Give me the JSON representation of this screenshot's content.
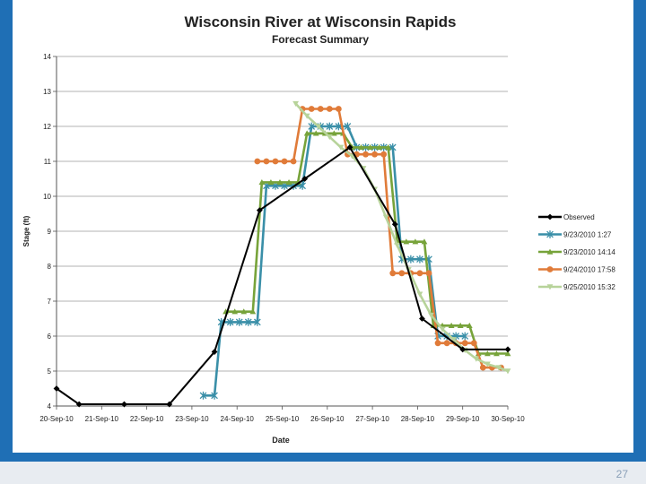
{
  "page_number": "27",
  "chart_data": {
    "type": "line",
    "title": "Wisconsin River at Wisconsin Rapids",
    "subtitle": "Forecast Summary",
    "xlabel": "Date",
    "ylabel": "Stage (ft)",
    "ylim": [
      4,
      14
    ],
    "yticks": [
      "4",
      "5",
      "6",
      "7",
      "8",
      "9",
      "10",
      "11",
      "12",
      "13",
      "14"
    ],
    "categories": [
      "20-Sep-10",
      "21-Sep-10",
      "22-Sep-10",
      "23-Sep-10",
      "24-Sep-10",
      "25-Sep-10",
      "26-Sep-10",
      "27-Sep-10",
      "28-Sep-10",
      "29-Sep-10",
      "30-Sep-10"
    ],
    "grid": true,
    "legend_position": "right",
    "series": [
      {
        "name": "Observed",
        "color": "#000000",
        "marker": "diamond",
        "points": [
          [
            0,
            4.5
          ],
          [
            0.5,
            4.05
          ],
          [
            1.5,
            4.05
          ],
          [
            2.5,
            4.05
          ],
          [
            3.5,
            5.55
          ],
          [
            4.5,
            9.6
          ],
          [
            5.5,
            10.5
          ],
          [
            6.5,
            11.4
          ],
          [
            7.5,
            9.2
          ],
          [
            8.1,
            6.5
          ],
          [
            9.0,
            5.62
          ],
          [
            10.0,
            5.62
          ]
        ]
      },
      {
        "name": "9/23/2010 1:27",
        "color": "#3a8fa8",
        "marker": "x",
        "points": [
          [
            3.25,
            4.3
          ],
          [
            3.5,
            4.3
          ],
          [
            3.65,
            6.4
          ],
          [
            3.85,
            6.4
          ],
          [
            4.05,
            6.4
          ],
          [
            4.25,
            6.4
          ],
          [
            4.45,
            6.4
          ],
          [
            4.65,
            10.3
          ],
          [
            4.85,
            10.3
          ],
          [
            5.05,
            10.3
          ],
          [
            5.25,
            10.3
          ],
          [
            5.45,
            10.3
          ],
          [
            5.65,
            12.0
          ],
          [
            5.85,
            12.0
          ],
          [
            6.05,
            12.0
          ],
          [
            6.25,
            12.0
          ],
          [
            6.45,
            12.0
          ],
          [
            6.65,
            11.4
          ],
          [
            6.85,
            11.4
          ],
          [
            7.05,
            11.4
          ],
          [
            7.25,
            11.4
          ],
          [
            7.45,
            11.4
          ],
          [
            7.65,
            8.2
          ],
          [
            7.85,
            8.2
          ],
          [
            8.05,
            8.2
          ],
          [
            8.25,
            8.2
          ],
          [
            8.45,
            6.0
          ],
          [
            8.65,
            6.0
          ],
          [
            8.85,
            6.0
          ],
          [
            9.05,
            6.0
          ]
        ]
      },
      {
        "name": "9/23/2010 14:14",
        "color": "#77a33a",
        "marker": "triangle",
        "points": [
          [
            3.75,
            6.7
          ],
          [
            3.95,
            6.7
          ],
          [
            4.15,
            6.7
          ],
          [
            4.35,
            6.7
          ],
          [
            4.55,
            10.4
          ],
          [
            4.75,
            10.4
          ],
          [
            4.95,
            10.4
          ],
          [
            5.15,
            10.4
          ],
          [
            5.35,
            10.4
          ],
          [
            5.55,
            11.8
          ],
          [
            5.75,
            11.8
          ],
          [
            5.95,
            11.8
          ],
          [
            6.15,
            11.8
          ],
          [
            6.35,
            11.8
          ],
          [
            6.55,
            11.4
          ],
          [
            6.75,
            11.4
          ],
          [
            6.95,
            11.4
          ],
          [
            7.15,
            11.4
          ],
          [
            7.35,
            11.4
          ],
          [
            7.55,
            8.7
          ],
          [
            7.75,
            8.7
          ],
          [
            7.95,
            8.7
          ],
          [
            8.15,
            8.7
          ],
          [
            8.35,
            6.3
          ],
          [
            8.55,
            6.3
          ],
          [
            8.75,
            6.3
          ],
          [
            8.95,
            6.3
          ],
          [
            9.15,
            6.3
          ],
          [
            9.35,
            5.5
          ],
          [
            9.55,
            5.5
          ],
          [
            9.75,
            5.5
          ],
          [
            10.0,
            5.5
          ]
        ]
      },
      {
        "name": "9/24/2010 17:58",
        "color": "#e07b39",
        "marker": "circle",
        "points": [
          [
            4.45,
            11.0
          ],
          [
            4.65,
            11.0
          ],
          [
            4.85,
            11.0
          ],
          [
            5.05,
            11.0
          ],
          [
            5.25,
            11.0
          ],
          [
            5.45,
            12.5
          ],
          [
            5.65,
            12.5
          ],
          [
            5.85,
            12.5
          ],
          [
            6.05,
            12.5
          ],
          [
            6.25,
            12.5
          ],
          [
            6.45,
            11.2
          ],
          [
            6.65,
            11.2
          ],
          [
            6.85,
            11.2
          ],
          [
            7.05,
            11.2
          ],
          [
            7.25,
            11.2
          ],
          [
            7.45,
            7.8
          ],
          [
            7.65,
            7.8
          ],
          [
            7.85,
            7.8
          ],
          [
            8.05,
            7.8
          ],
          [
            8.25,
            7.8
          ],
          [
            8.45,
            5.8
          ],
          [
            8.65,
            5.8
          ],
          [
            8.85,
            5.8
          ],
          [
            9.05,
            5.8
          ],
          [
            9.25,
            5.8
          ],
          [
            9.45,
            5.1
          ],
          [
            9.65,
            5.1
          ],
          [
            9.85,
            5.1
          ]
        ]
      },
      {
        "name": "9/25/2010 15:32",
        "color": "#b7d39a",
        "marker": "triangle-down",
        "points": [
          [
            5.3,
            12.65
          ],
          [
            5.55,
            12.3
          ],
          [
            5.8,
            12.0
          ],
          [
            6.05,
            11.7
          ],
          [
            6.3,
            11.4
          ],
          [
            6.55,
            11.15
          ],
          [
            6.8,
            10.8
          ],
          [
            7.05,
            10.2
          ],
          [
            7.3,
            9.4
          ],
          [
            7.55,
            8.6
          ],
          [
            7.8,
            7.9
          ],
          [
            8.05,
            7.2
          ],
          [
            8.3,
            6.6
          ],
          [
            8.55,
            6.2
          ],
          [
            8.8,
            5.9
          ],
          [
            9.05,
            5.6
          ],
          [
            9.3,
            5.35
          ],
          [
            9.55,
            5.2
          ],
          [
            9.8,
            5.1
          ],
          [
            10.0,
            5.0
          ]
        ]
      }
    ]
  }
}
